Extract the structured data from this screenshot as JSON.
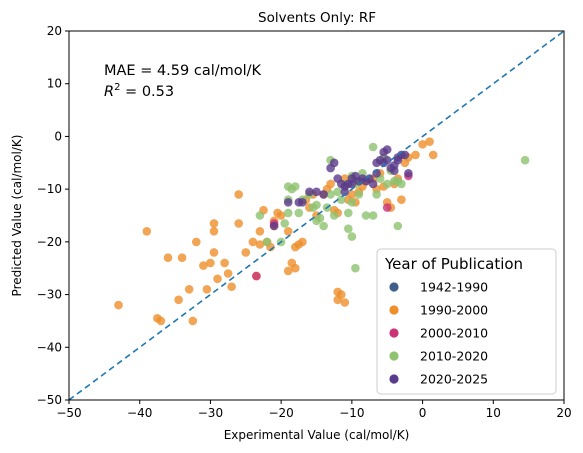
{
  "chart_data": {
    "type": "scatter",
    "title": "Solvents Only: RF",
    "xlabel": "Experimental Value (cal/mol/K)",
    "ylabel": "Predicted Value (cal/mol/K)",
    "xlim": [
      -50,
      20
    ],
    "ylim": [
      -50,
      20
    ],
    "xticks": [
      "−50",
      "−40",
      "−30",
      "−20",
      "−10",
      "0",
      "10",
      "20"
    ],
    "yticks": [
      "−50",
      "−40",
      "−30",
      "−20",
      "−10",
      "0",
      "10",
      "20"
    ],
    "annotation": {
      "mae": "MAE = 4.59 cal/mol/K",
      "r2_prefix": "R",
      "r2_sup": "2",
      "r2_value": " = 0.53"
    },
    "legend": {
      "title": "Year of Publication",
      "placement": "lower-right"
    },
    "reference_line": {
      "style": "dashed",
      "from": [
        -50,
        -50
      ],
      "to": [
        20,
        20
      ],
      "color": "#1f77b4"
    },
    "grid": false,
    "series": [
      {
        "name": "1942-1990",
        "color": "#3e5f8a",
        "points": []
      },
      {
        "name": "1990-2000",
        "color": "#ee8f2a",
        "points": [
          [
            -43,
            -32
          ],
          [
            -39,
            -18
          ],
          [
            -37.5,
            -34.5
          ],
          [
            -37,
            -35
          ],
          [
            -36,
            -23
          ],
          [
            -34,
            -23
          ],
          [
            -34.5,
            -31
          ],
          [
            -33,
            -29
          ],
          [
            -32.5,
            -35
          ],
          [
            -32,
            -20
          ],
          [
            -31,
            -24.5
          ],
          [
            -30.5,
            -29
          ],
          [
            -30,
            -24
          ],
          [
            -29.5,
            -22
          ],
          [
            -29.5,
            -18
          ],
          [
            -29.5,
            -16.5
          ],
          [
            -29,
            -27
          ],
          [
            -28,
            -24
          ],
          [
            -27.5,
            -26
          ],
          [
            -27,
            -28.5
          ],
          [
            -26,
            -11
          ],
          [
            -26,
            -16.5
          ],
          [
            -25,
            -22
          ],
          [
            -24,
            -20
          ],
          [
            -23.5,
            -26.5
          ],
          [
            -23,
            -18
          ],
          [
            -23,
            -20.5
          ],
          [
            -22.5,
            -14
          ],
          [
            -22,
            -20
          ],
          [
            -21.5,
            -21
          ],
          [
            -21,
            -17
          ],
          [
            -21,
            -16
          ],
          [
            -20.5,
            -14.5
          ],
          [
            -20,
            -15
          ],
          [
            -19,
            -25.5
          ],
          [
            -19,
            -18
          ],
          [
            -18.5,
            -24
          ],
          [
            -18,
            -25
          ],
          [
            -18,
            -21
          ],
          [
            -17.5,
            -20.5
          ],
          [
            -17,
            -20
          ],
          [
            -16.5,
            -12
          ],
          [
            -16,
            -13.5
          ],
          [
            -15.5,
            -11
          ],
          [
            -15,
            -15
          ],
          [
            -14,
            -11
          ],
          [
            -13.5,
            -10
          ],
          [
            -13,
            -9
          ],
          [
            -12.5,
            -14
          ],
          [
            -12,
            -14.5
          ],
          [
            -12,
            -31
          ],
          [
            -12,
            -29.5
          ],
          [
            -11.5,
            -30
          ],
          [
            -11,
            -31.5
          ],
          [
            -11,
            -8
          ],
          [
            -10.5,
            -12
          ],
          [
            -10,
            -11
          ],
          [
            -9.5,
            -12.5
          ],
          [
            -9,
            -10.5
          ],
          [
            -8.5,
            -9.5
          ],
          [
            -8,
            -8.5
          ],
          [
            -7,
            -8
          ],
          [
            -6.5,
            -10
          ],
          [
            -6,
            -7
          ],
          [
            -5.5,
            -9.5
          ],
          [
            -5,
            -12.5
          ],
          [
            -4.5,
            -13.5
          ],
          [
            -4,
            -9
          ],
          [
            -3.5,
            -8
          ],
          [
            -3,
            -12
          ],
          [
            -2.5,
            -5
          ],
          [
            -2,
            -4
          ],
          [
            -1,
            -3.5
          ],
          [
            0,
            -1.5
          ],
          [
            1,
            -1
          ],
          [
            1.5,
            -3.5
          ]
        ]
      },
      {
        "name": "2000-2010",
        "color": "#cc3377",
        "points": [
          [
            -23.5,
            -26.5
          ],
          [
            -21,
            -16.5
          ],
          [
            -5,
            -13.5
          ],
          [
            -2,
            -7.5
          ]
        ]
      },
      {
        "name": "2010-2020",
        "color": "#8dc26f",
        "points": [
          [
            -23,
            -15
          ],
          [
            -22,
            -20
          ],
          [
            -20,
            -20
          ],
          [
            -19.5,
            -16.5
          ],
          [
            -19,
            -14.5
          ],
          [
            -19,
            -12
          ],
          [
            -19,
            -9.5
          ],
          [
            -18.5,
            -10
          ],
          [
            -18,
            -9.5
          ],
          [
            -17.5,
            -14.5
          ],
          [
            -17,
            -12
          ],
          [
            -16,
            -11
          ],
          [
            -15.5,
            -13.5
          ],
          [
            -15,
            -16
          ],
          [
            -15,
            -13
          ],
          [
            -14.5,
            -15.5
          ],
          [
            -14,
            -17
          ],
          [
            -13.5,
            -13.5
          ],
          [
            -13,
            -4.5
          ],
          [
            -13,
            -11
          ],
          [
            -12.5,
            -15
          ],
          [
            -12,
            -10.5
          ],
          [
            -11.5,
            -12
          ],
          [
            -11,
            -9
          ],
          [
            -10.5,
            -14.5
          ],
          [
            -10.5,
            -17.5
          ],
          [
            -10,
            -19
          ],
          [
            -10,
            -12.5
          ],
          [
            -10,
            -7.5
          ],
          [
            -9.5,
            -9
          ],
          [
            -9.5,
            -25
          ],
          [
            -9,
            -11
          ],
          [
            -9,
            -8.5
          ],
          [
            -8.5,
            -7
          ],
          [
            -8,
            -15
          ],
          [
            -7,
            -15
          ],
          [
            -7,
            -2
          ],
          [
            -6.5,
            -11
          ],
          [
            -6,
            -8
          ],
          [
            -5.5,
            -4
          ],
          [
            -5,
            -9
          ],
          [
            -4.5,
            -6.5
          ],
          [
            -4,
            -8.5
          ],
          [
            -3.5,
            -8.5
          ],
          [
            -3.5,
            -17
          ],
          [
            -3,
            -9
          ],
          [
            14.5,
            -4.5
          ]
        ]
      },
      {
        "name": "2020-2025",
        "color": "#5a3a8a",
        "points": [
          [
            -21,
            -17
          ],
          [
            -19,
            -12.5
          ],
          [
            -17.5,
            -12.5
          ],
          [
            -17,
            -12.5
          ],
          [
            -16,
            -10.5
          ],
          [
            -15,
            -10.5
          ],
          [
            -14,
            -11
          ],
          [
            -13,
            -6
          ],
          [
            -12.5,
            -5
          ],
          [
            -12,
            -8
          ],
          [
            -11.5,
            -9
          ],
          [
            -11,
            -9.5
          ],
          [
            -11,
            -10.5
          ],
          [
            -10.5,
            -9
          ],
          [
            -10,
            -9
          ],
          [
            -10,
            -8
          ],
          [
            -9.5,
            -7.5
          ],
          [
            -9,
            -8.5
          ],
          [
            -8.5,
            -8
          ],
          [
            -8,
            -8.5
          ],
          [
            -7.5,
            -8
          ],
          [
            -7,
            -9
          ],
          [
            -6.5,
            -7
          ],
          [
            -6.5,
            -5
          ],
          [
            -6,
            -4.5
          ],
          [
            -5.5,
            -5
          ],
          [
            -5.5,
            -3
          ],
          [
            -5,
            -2.5
          ],
          [
            -5,
            -4.5
          ],
          [
            -4.5,
            -6
          ],
          [
            -4,
            -6.5
          ],
          [
            -4,
            -5.5
          ],
          [
            -3.5,
            -4
          ],
          [
            -3.5,
            -4.5
          ],
          [
            -3,
            -3.5
          ],
          [
            -2.5,
            -3.5
          ],
          [
            -2,
            -7
          ]
        ]
      }
    ]
  }
}
